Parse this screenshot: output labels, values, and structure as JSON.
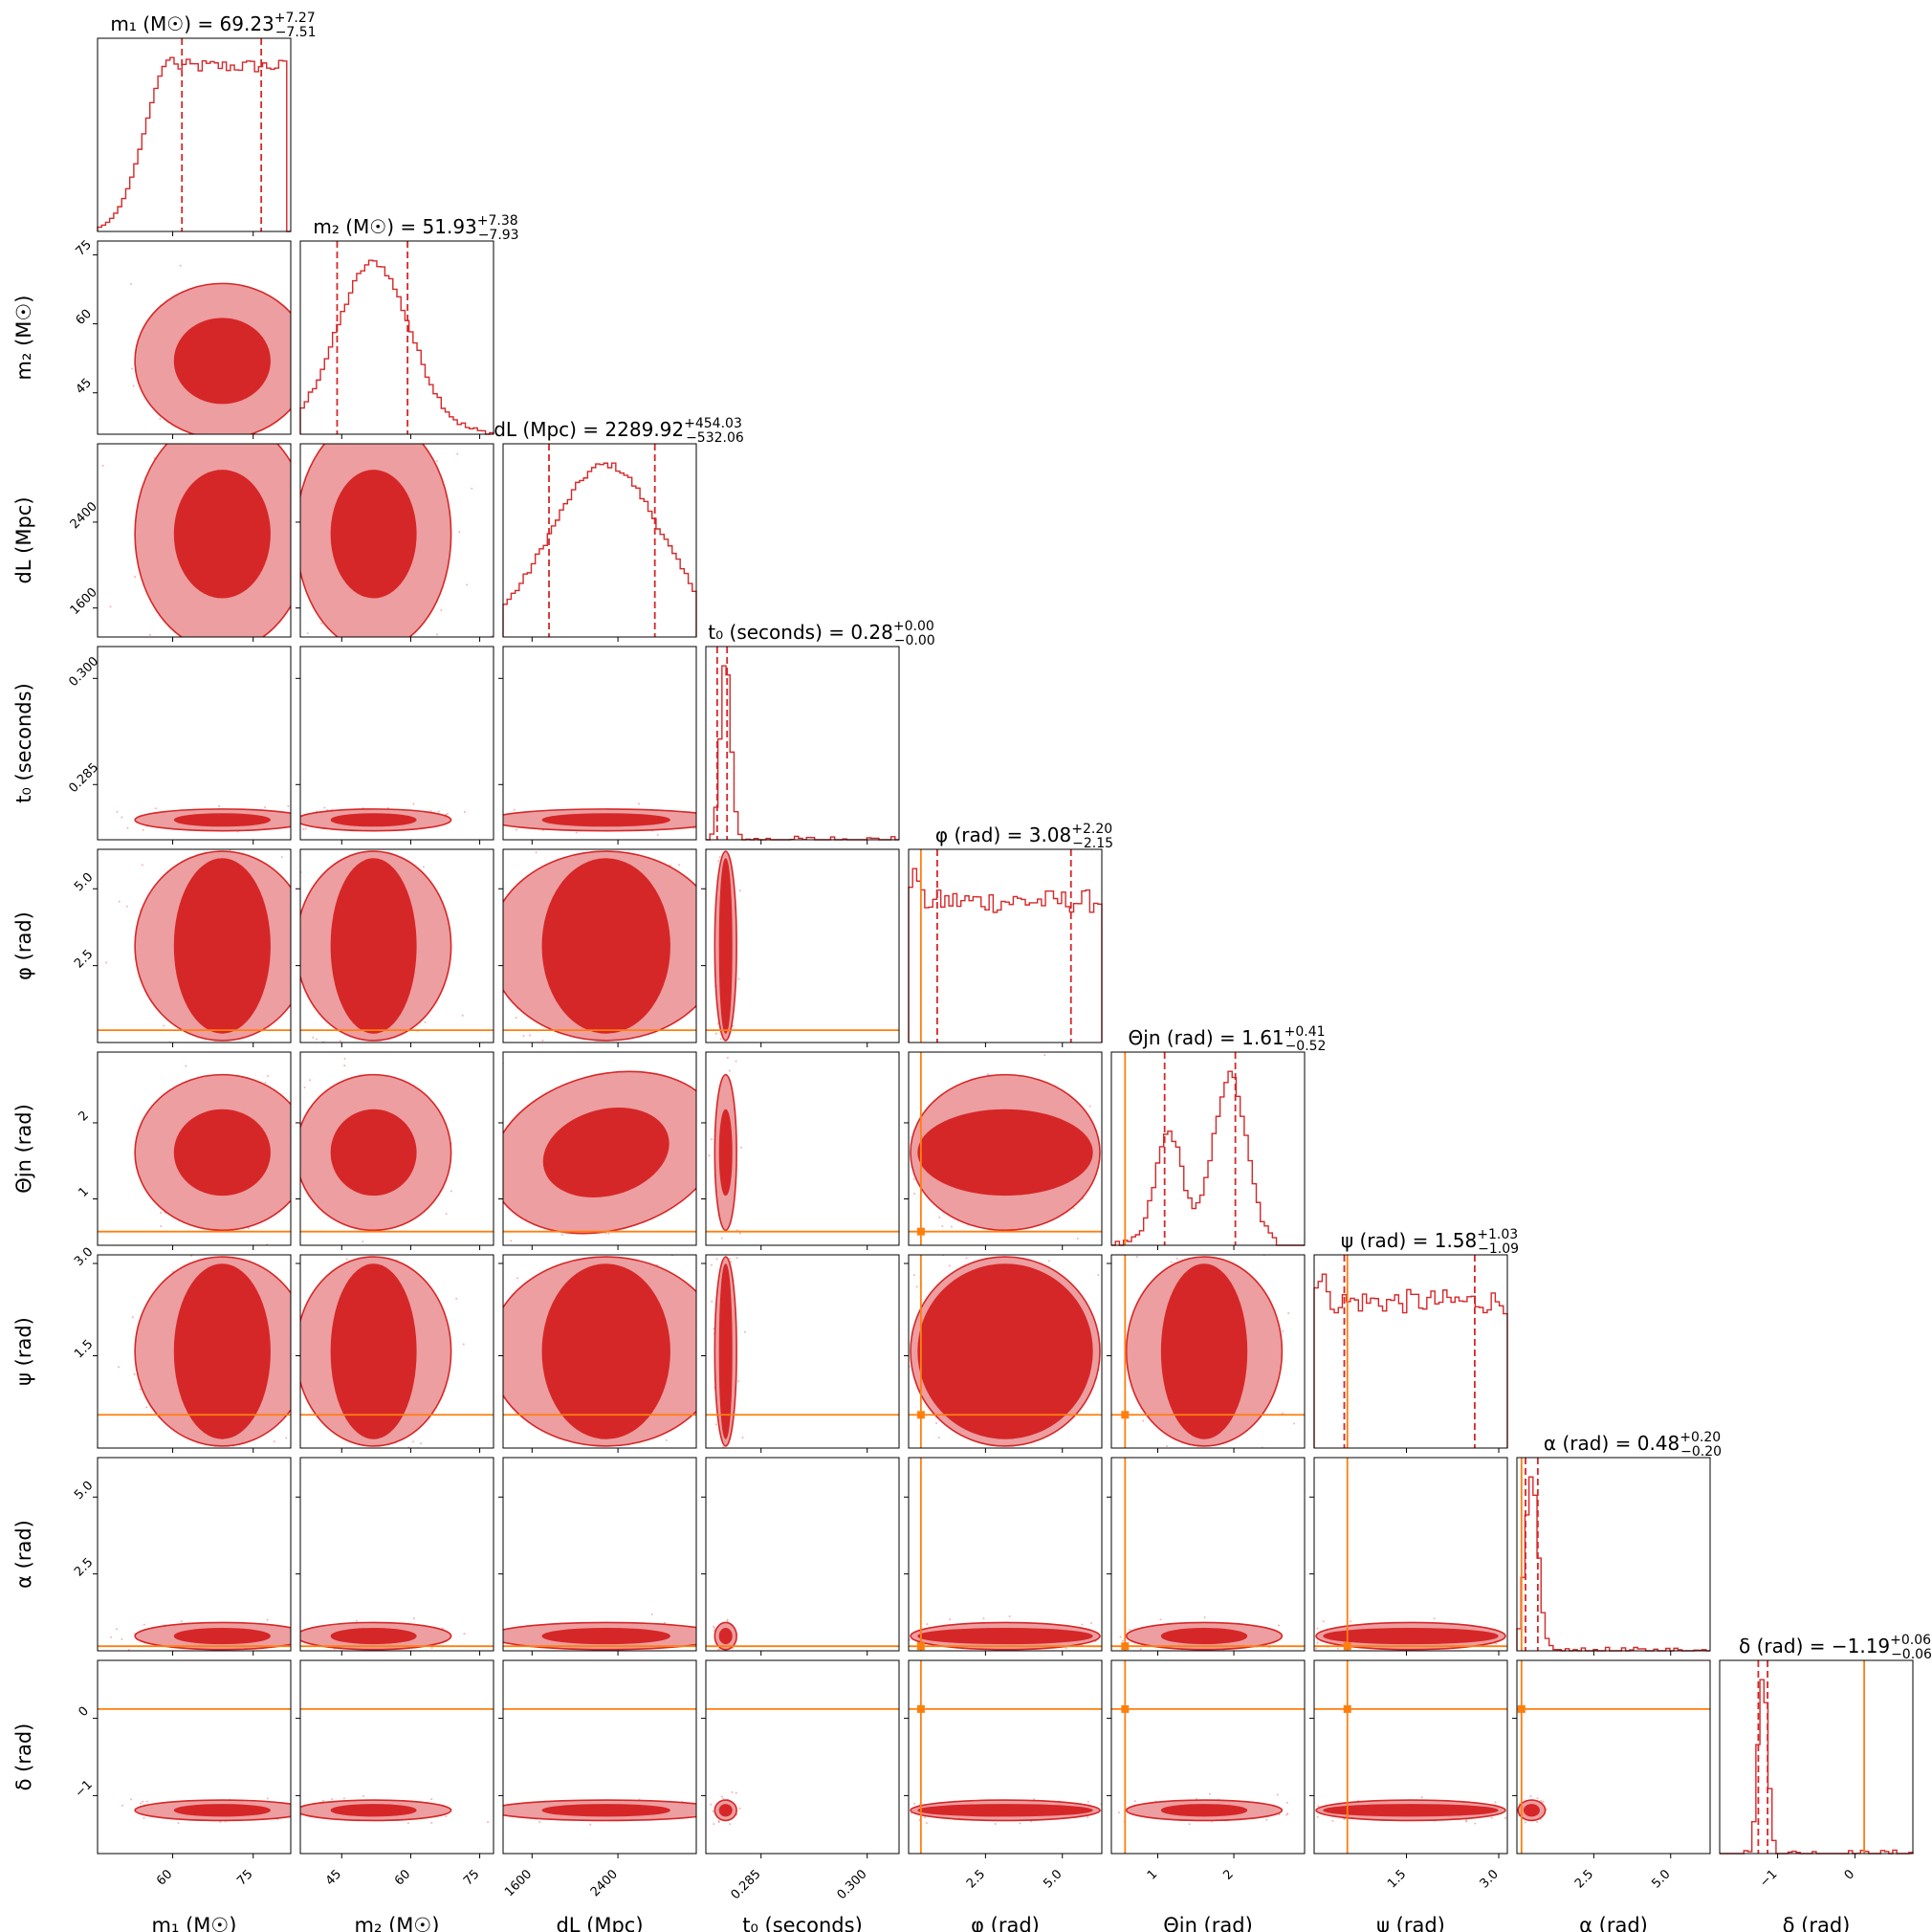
{
  "figure_kind": "corner",
  "colors": {
    "posterior": "#d62728",
    "posterior_light": "#ec9ea0",
    "injection": "#ff7f0e",
    "frame": "#000000"
  },
  "chart_data": {
    "type": "corner",
    "parameters": [
      {
        "key": "m1",
        "label": "m₁ (M☉)",
        "title": "m₁ (M☉) = 69.23",
        "median": 69.23,
        "err_plus": "+7.27",
        "err_minus": "−7.51",
        "q_low": 61.72,
        "q_high": 76.5,
        "range": [
          46,
          82
        ],
        "ticks": [
          60,
          75
        ],
        "tick_labels": [
          "60",
          "75"
        ],
        "truth": null
      },
      {
        "key": "m2",
        "label": "m₂ (M☉)",
        "title": "m₂ (M☉) = 51.93",
        "median": 51.93,
        "err_plus": "+7.38",
        "err_minus": "−7.93",
        "q_low": 44.0,
        "q_high": 59.31,
        "range": [
          36,
          78
        ],
        "ticks": [
          45,
          60,
          75
        ],
        "tick_labels": [
          "45",
          "60",
          "75"
        ],
        "truth": null
      },
      {
        "key": "dL",
        "label": "dL (Mpc)",
        "title": "dL (Mpc) = 2289.92",
        "median": 2289.92,
        "err_plus": "+454.03",
        "err_minus": "−532.06",
        "q_low": 1757.86,
        "q_high": 2743.95,
        "range": [
          1330,
          3130
        ],
        "ticks": [
          1600,
          2400
        ],
        "tick_labels": [
          "1600",
          "2400"
        ],
        "truth": null
      },
      {
        "key": "t0",
        "label": "t₀ (seconds)",
        "title": "t₀ (seconds) = 0.28",
        "median": 0.28,
        "err_plus": "+0.00",
        "err_minus": "−0.00",
        "q_low": 0.2788,
        "q_high": 0.2802,
        "range": [
          0.2772,
          0.3045
        ],
        "ticks": [
          0.285,
          0.3
        ],
        "tick_labels": [
          "0.285",
          "0.300"
        ],
        "truth": null
      },
      {
        "key": "phi",
        "label": "φ (rad)",
        "title": "φ (rad) = 3.08",
        "median": 3.08,
        "err_plus": "+2.20",
        "err_minus": "−2.15",
        "q_low": 0.93,
        "q_high": 5.28,
        "range": [
          0.0,
          6.283
        ],
        "ticks": [
          2.5,
          5.0
        ],
        "tick_labels": [
          "2.5",
          "5.0"
        ],
        "truth": 0.4
      },
      {
        "key": "theta_jn",
        "label": "Θjn (rad)",
        "title": "Θjn (rad) = 1.61",
        "median": 1.61,
        "err_plus": "+0.41",
        "err_minus": "−0.52",
        "q_low": 1.09,
        "q_high": 2.02,
        "range": [
          0.39,
          2.93
        ],
        "ticks": [
          1,
          2
        ],
        "tick_labels": [
          "1",
          "2"
        ],
        "truth": 0.57
      },
      {
        "key": "psi",
        "label": "ψ (rad)",
        "title": "ψ (rad) = 1.58",
        "median": 1.58,
        "err_plus": "+1.03",
        "err_minus": "−1.09",
        "q_low": 0.49,
        "q_high": 2.61,
        "range": [
          0.0,
          3.14
        ],
        "ticks": [
          1.5,
          3.0
        ],
        "tick_labels": [
          "1.5",
          "3.0"
        ],
        "truth": 0.54
      },
      {
        "key": "alpha",
        "label": "α (rad)",
        "title": "α (rad) = 0.48",
        "median": 0.48,
        "err_plus": "+0.20",
        "err_minus": "−0.20",
        "q_low": 0.28,
        "q_high": 0.68,
        "range": [
          0.0,
          6.283
        ],
        "ticks": [
          2.5,
          5.0
        ],
        "tick_labels": [
          "2.5",
          "5.0"
        ],
        "truth": 0.15
      },
      {
        "key": "delta",
        "label": "δ (rad)",
        "title": "δ (rad) = −1.19",
        "median": -1.19,
        "err_plus": "+0.06",
        "err_minus": "−0.06",
        "q_low": -1.25,
        "q_high": -1.13,
        "range": [
          -1.75,
          0.75
        ],
        "ticks": [
          -1,
          0
        ],
        "tick_labels": [
          "−1",
          "0"
        ],
        "truth": 0.12
      }
    ]
  }
}
